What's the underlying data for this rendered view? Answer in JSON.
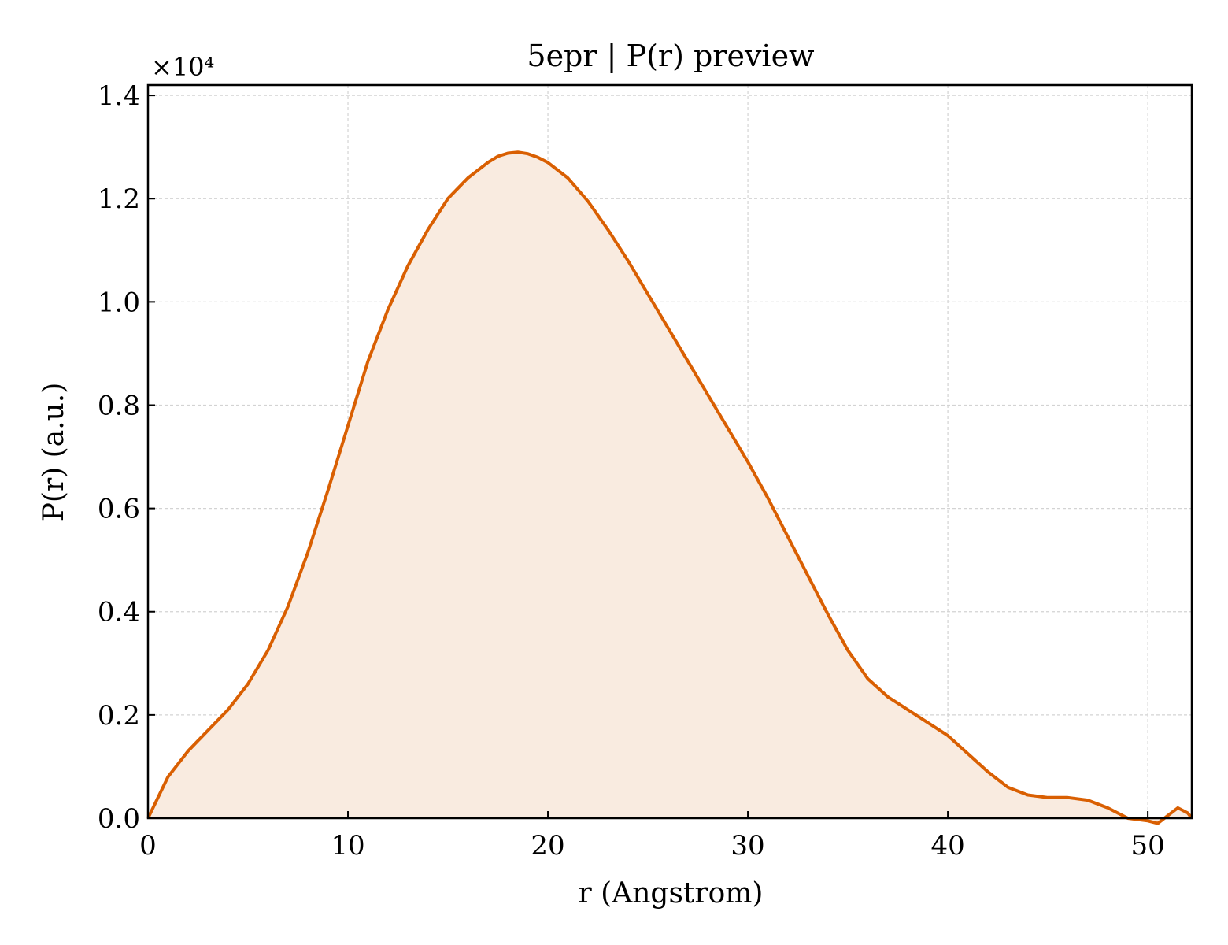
{
  "chart_data": {
    "type": "area",
    "title": "5epr | P(r) preview",
    "xlabel": "r (Angstrom)",
    "ylabel": "P(r) (a.u.)",
    "y_scale_label": "×10⁴",
    "y_multiplier": 10000,
    "xlim": [
      0,
      52.2
    ],
    "ylim": [
      0,
      1.42
    ],
    "xticks": [
      0,
      10,
      20,
      30,
      40,
      50
    ],
    "yticks": [
      0.0,
      0.2,
      0.4,
      0.6,
      0.8,
      1.0,
      1.2,
      1.4
    ],
    "xtick_labels": [
      "0",
      "10",
      "20",
      "30",
      "40",
      "50"
    ],
    "ytick_labels": [
      "0.0",
      "0.2",
      "0.4",
      "0.6",
      "0.8",
      "1.0",
      "1.2",
      "1.4"
    ],
    "grid": true,
    "legend": "none",
    "colors": {
      "line": "#d95f02",
      "fill": "#f9ebe0",
      "grid": "#d3d3d3"
    },
    "series": [
      {
        "x": [
          0,
          0.5,
          1,
          1.5,
          2,
          3,
          4,
          5,
          6,
          7,
          8,
          9,
          10,
          11,
          12,
          13,
          14,
          15,
          16,
          17,
          17.5,
          18,
          18.5,
          19,
          19.5,
          20,
          21,
          22,
          23,
          24,
          25,
          26,
          27,
          28,
          29,
          30,
          31,
          32,
          33,
          34,
          35,
          36,
          37,
          38,
          39,
          40,
          41,
          42,
          43,
          44,
          45,
          46,
          47,
          48,
          49,
          50,
          50.5,
          51,
          51.5,
          52,
          52.2
        ],
        "y": [
          0.0,
          0.04,
          0.08,
          0.105,
          0.13,
          0.17,
          0.21,
          0.26,
          0.325,
          0.41,
          0.515,
          0.635,
          0.76,
          0.885,
          0.985,
          1.07,
          1.14,
          1.2,
          1.24,
          1.27,
          1.282,
          1.288,
          1.29,
          1.287,
          1.28,
          1.27,
          1.24,
          1.195,
          1.14,
          1.08,
          1.015,
          0.95,
          0.885,
          0.82,
          0.755,
          0.69,
          0.62,
          0.545,
          0.47,
          0.395,
          0.325,
          0.27,
          0.235,
          0.21,
          0.185,
          0.16,
          0.125,
          0.09,
          0.06,
          0.045,
          0.04,
          0.04,
          0.035,
          0.02,
          0.0,
          -0.005,
          -0.01,
          0.005,
          0.02,
          0.01,
          0.0
        ]
      }
    ]
  }
}
